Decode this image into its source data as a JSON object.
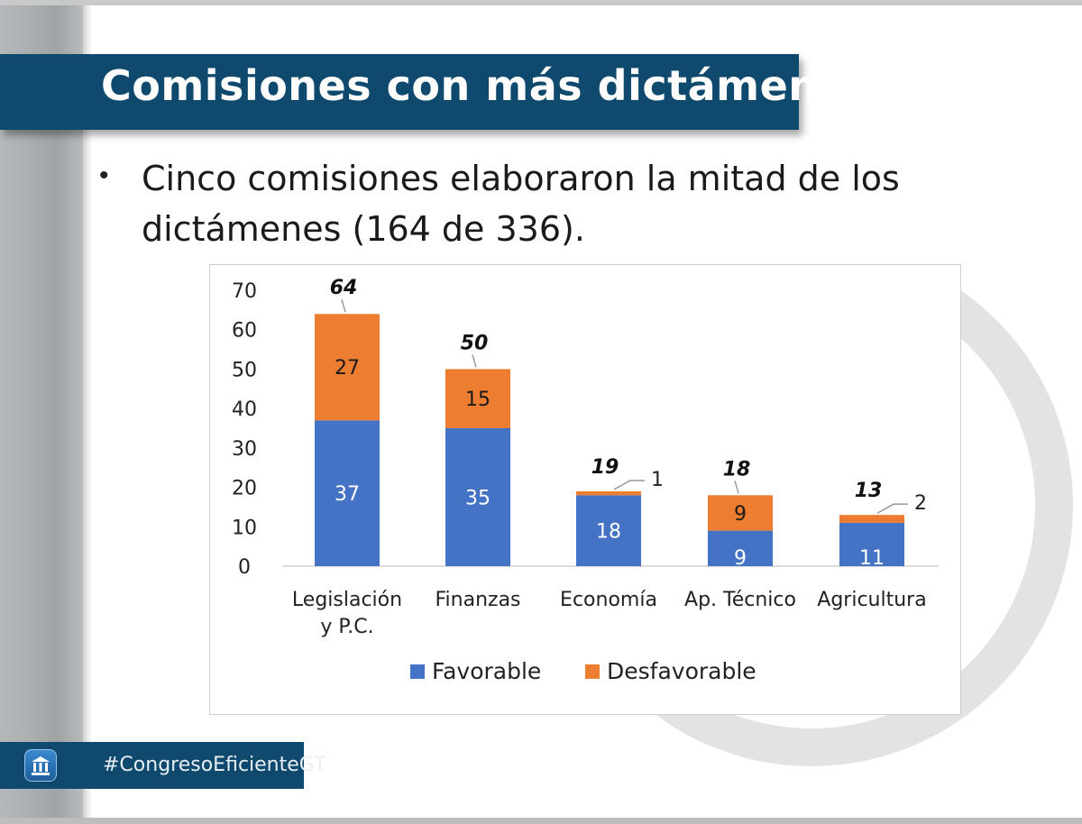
{
  "slide": {
    "title": "Comisiones con más dictámenes",
    "bullet_symbol": "•",
    "bullet_text": "Cinco comisiones elaboraron la mitad de los dictámenes (164 de 336).",
    "hashtag": "#CongresoEficienteGT",
    "colors": {
      "banner": "#0f4a6e",
      "favorable": "#4472c4",
      "desfavorable": "#ed7d31"
    }
  },
  "chart_data": {
    "type": "bar",
    "stacked": true,
    "categories": [
      [
        "Legislación",
        "y P.C."
      ],
      [
        "Finanzas"
      ],
      [
        "Economía"
      ],
      [
        "Ap. Técnico"
      ],
      [
        "Agricultura"
      ]
    ],
    "series": [
      {
        "name": "Favorable",
        "color": "#4472c4",
        "values": [
          37,
          35,
          18,
          9,
          11
        ]
      },
      {
        "name": "Desfavorable",
        "color": "#ed7d31",
        "values": [
          27,
          15,
          1,
          9,
          2
        ]
      }
    ],
    "totals": [
      64,
      50,
      19,
      18,
      13
    ],
    "yticks": [
      0,
      10,
      20,
      30,
      40,
      50,
      60,
      70
    ],
    "ylim": [
      0,
      70
    ],
    "legend": "bottom"
  }
}
